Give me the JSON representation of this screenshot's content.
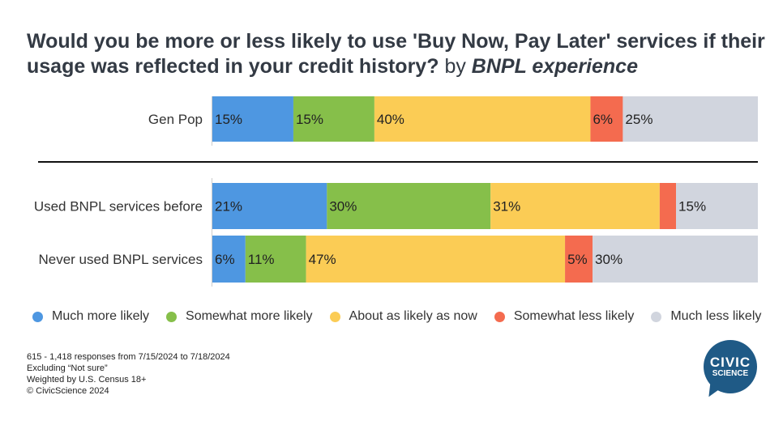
{
  "title": {
    "main": "Would you be more or less likely to use 'Buy Now, Pay Later' services if their usage was reflected in your credit history?",
    "by": "by",
    "segment": "BNPL experience"
  },
  "chart_data": {
    "type": "bar",
    "orientation": "horizontal",
    "stacked": true,
    "normalized": true,
    "categories": [
      "Gen Pop",
      "Used BNPL services before",
      "Never used BNPL services"
    ],
    "series": [
      {
        "name": "Much more likely",
        "color": "#4e97e1",
        "values": [
          15,
          21,
          6
        ],
        "labels": [
          "15%",
          "21%",
          "6%"
        ]
      },
      {
        "name": "Somewhat more likely",
        "color": "#86bf4a",
        "values": [
          15,
          30,
          11
        ],
        "labels": [
          "15%",
          "30%",
          "11%"
        ]
      },
      {
        "name": "About as likely as now",
        "color": "#fbcc55",
        "values": [
          40,
          31,
          47
        ],
        "labels": [
          "40%",
          "31%",
          "47%"
        ]
      },
      {
        "name": "Somewhat less likely",
        "color": "#f46b4f",
        "values": [
          6,
          3,
          5
        ],
        "labels": [
          "6%",
          "",
          "5%"
        ]
      },
      {
        "name": "Much less likely",
        "color": "#d1d5de",
        "values": [
          25,
          15,
          30
        ],
        "labels": [
          "25%",
          "15%",
          "30%"
        ]
      }
    ],
    "legend_position": "bottom",
    "grid": false
  },
  "footnotes": [
    "615 - 1,418 responses from 7/15/2024 to 7/18/2024",
    "Excluding “Not sure”",
    "Weighted by U.S. Census 18+",
    "© CivicScience 2024"
  ],
  "logo": {
    "line1": "CIVIC",
    "line2": "SCIENCE"
  }
}
